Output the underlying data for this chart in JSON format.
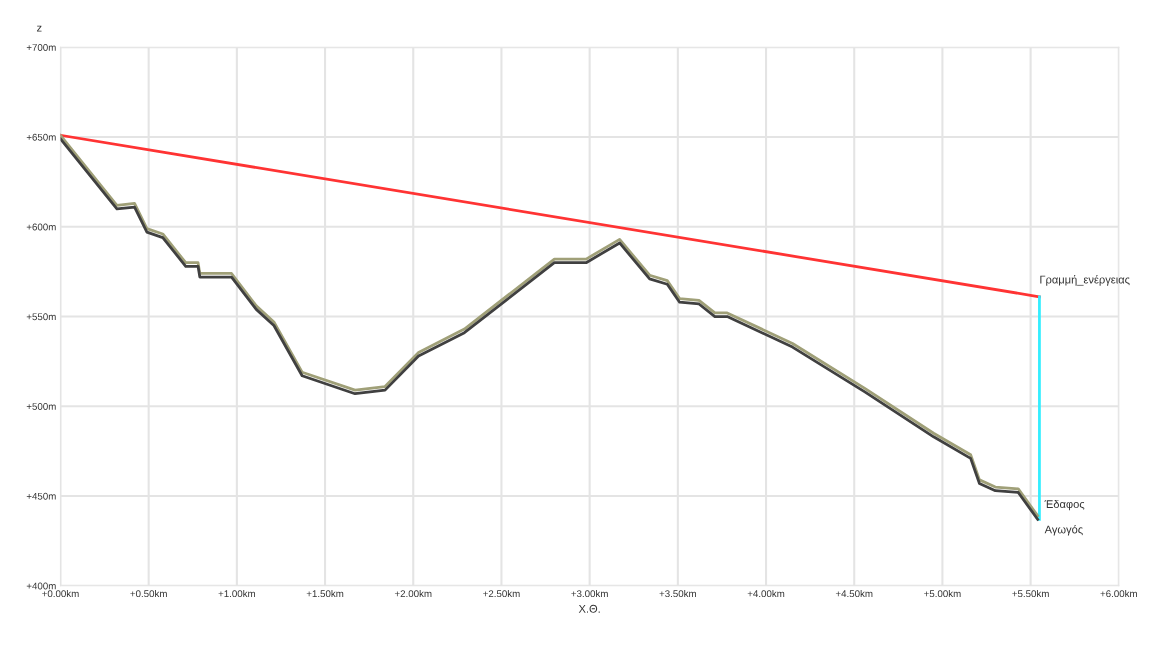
{
  "chart_data": {
    "type": "line",
    "xlabel": "X.Θ.",
    "ylabel": "z",
    "xlim": [
      0,
      6
    ],
    "ylim": [
      400,
      700
    ],
    "xticks": [
      {
        "value": 0,
        "label": "+0.00km"
      },
      {
        "value": 0.5,
        "label": "+0.50km"
      },
      {
        "value": 1,
        "label": "+1.00km"
      },
      {
        "value": 1.5,
        "label": "+1.50km"
      },
      {
        "value": 2,
        "label": "+2.00km"
      },
      {
        "value": 2.5,
        "label": "+2.50km"
      },
      {
        "value": 3,
        "label": "+3.00km"
      },
      {
        "value": 3.5,
        "label": "+3.50km"
      },
      {
        "value": 4,
        "label": "+4.00km"
      },
      {
        "value": 4.5,
        "label": "+4.50km"
      },
      {
        "value": 5,
        "label": "+5.00km"
      },
      {
        "value": 5.5,
        "label": "+5.50km"
      },
      {
        "value": 6,
        "label": "+6.00km"
      }
    ],
    "yticks": [
      {
        "value": 400,
        "label": "+400m"
      },
      {
        "value": 450,
        "label": "+450m"
      },
      {
        "value": 500,
        "label": "+500m"
      },
      {
        "value": 550,
        "label": "+550m"
      },
      {
        "value": 600,
        "label": "+600m"
      },
      {
        "value": 650,
        "label": "+650m"
      },
      {
        "value": 700,
        "label": "+700m"
      }
    ],
    "grid": true,
    "legend": false,
    "marker": "none",
    "line_style": "solid",
    "series": [
      {
        "name": "Γραμμή_ενέργειας",
        "color": "#ff3333",
        "x": [
          0,
          5.55
        ],
        "values": [
          651,
          561
        ]
      },
      {
        "color": "#33eeff",
        "x": [
          5.55,
          5.55
        ],
        "values": [
          561,
          437
        ]
      },
      {
        "name": "Έδαφος",
        "color": "#a0a078",
        "x": [
          0,
          0.32,
          0.42,
          0.49,
          0.58,
          0.71,
          0.78,
          0.79,
          0.97,
          1.11,
          1.21,
          1.37,
          1.67,
          1.84,
          2.03,
          2.29,
          2.8,
          2.98,
          3.17,
          3.34,
          3.44,
          3.51,
          3.62,
          3.71,
          3.78,
          4.15,
          4.56,
          4.95,
          5.16,
          5.21,
          5.3,
          5.43,
          5.54
        ],
        "values": [
          651,
          612,
          613,
          599,
          596,
          580,
          580,
          574,
          574,
          556,
          547,
          519,
          509,
          511,
          530,
          543,
          582,
          582,
          593,
          573,
          570,
          560,
          559,
          552,
          552,
          535,
          510,
          485,
          473,
          459,
          455,
          454,
          439
        ]
      },
      {
        "name": "Αγωγός",
        "color": "#404040",
        "x": [
          0,
          0.32,
          0.42,
          0.49,
          0.58,
          0.71,
          0.78,
          0.79,
          0.97,
          1.11,
          1.21,
          1.37,
          1.67,
          1.84,
          2.03,
          2.29,
          2.8,
          2.98,
          3.17,
          3.34,
          3.44,
          3.51,
          3.62,
          3.71,
          3.78,
          4.15,
          4.56,
          4.95,
          5.16,
          5.21,
          5.3,
          5.43,
          5.54
        ],
        "values": [
          649,
          610,
          611,
          597,
          594,
          578,
          578,
          572,
          572,
          554,
          545,
          517,
          507,
          509,
          528,
          541,
          580,
          580,
          591,
          571,
          568,
          558,
          557,
          550,
          550,
          533,
          508,
          483,
          471,
          457,
          453,
          452,
          437
        ]
      }
    ]
  }
}
